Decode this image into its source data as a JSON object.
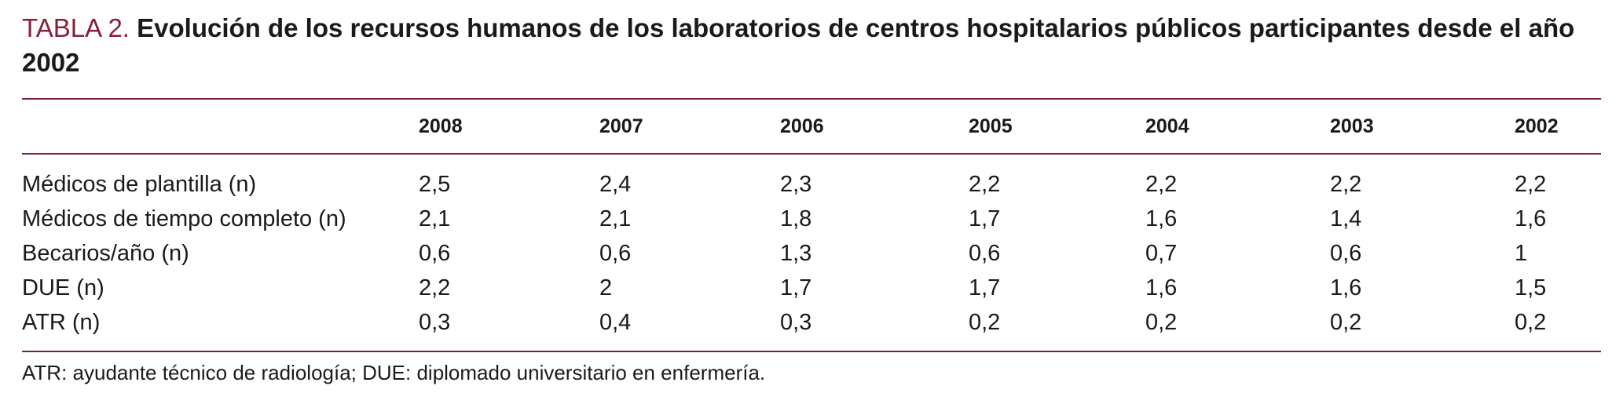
{
  "title": {
    "label": "TABLA 2.",
    "text": "Evolución de los recursos humanos de los laboratorios de centros hospitalarios públicos participantes desde el año 2002"
  },
  "table": {
    "headers": [
      "",
      "2008",
      "2007",
      "2006",
      "2005",
      "2004",
      "2003",
      "2002"
    ],
    "rows": [
      {
        "label": "Médicos de plantilla (n)",
        "values": [
          "2,5",
          "2,4",
          "2,3",
          "2,2",
          "2,2",
          "2,2",
          "2,2"
        ]
      },
      {
        "label": "Médicos de tiempo completo (n)",
        "values": [
          "2,1",
          "2,1",
          "1,8",
          "1,7",
          "1,6",
          "1,4",
          "1,6"
        ]
      },
      {
        "label": "Becarios/año (n)",
        "values": [
          "0,6",
          "0,6",
          "1,3",
          "0,6",
          "0,7",
          "0,6",
          "1"
        ]
      },
      {
        "label": "DUE (n)",
        "values": [
          "2,2",
          "2",
          "1,7",
          "1,7",
          "1,6",
          "1,6",
          "1,5"
        ]
      },
      {
        "label": "ATR (n)",
        "values": [
          "0,3",
          "0,4",
          "0,3",
          "0,2",
          "0,2",
          "0,2",
          "0,2"
        ]
      }
    ]
  },
  "footnote": "ATR: ayudante técnico de radiología; DUE: diplomado universitario en enfermería."
}
